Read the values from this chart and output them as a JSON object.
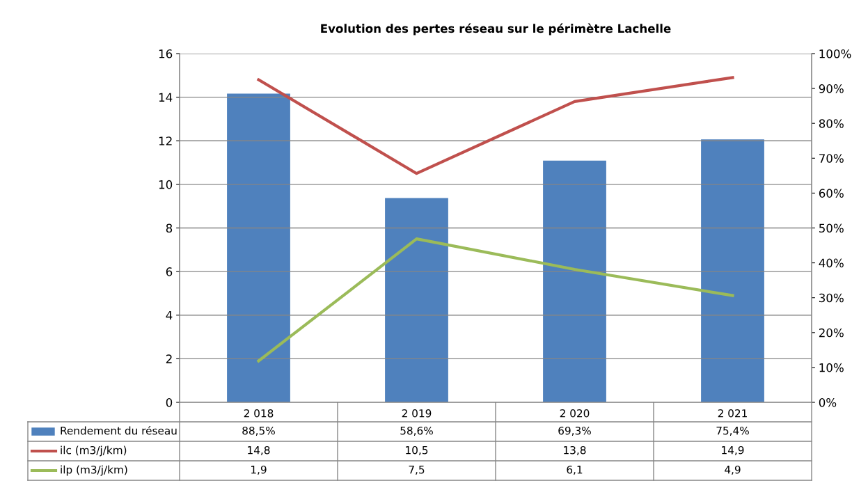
{
  "chart_data": {
    "type": "bar",
    "title": "Evolution des pertes réseau sur le périmètre Lachelle",
    "categories": [
      "2 018",
      "2 019",
      "2 020",
      "2 021"
    ],
    "series": [
      {
        "name": "Rendement du réseau",
        "axis": "y2",
        "color": "#4f81bd",
        "values": [
          88.5,
          58.6,
          69.3,
          75.4
        ],
        "value_labels": [
          "88,5%",
          "58,6%",
          "69,3%",
          "75,4%"
        ]
      },
      {
        "name": "ilc (m3/j/km)",
        "type": "line",
        "color": "#c0504d",
        "values": [
          14.8,
          10.5,
          13.8,
          14.9
        ],
        "value_labels": [
          "14,8",
          "10,5",
          "13,8",
          "14,9"
        ]
      },
      {
        "name": "ilp (m3/j/km)",
        "type": "line",
        "color": "#9bbb59",
        "values": [
          1.9,
          7.5,
          6.1,
          4.9
        ],
        "value_labels": [
          "1,9",
          "7,5",
          "6,1",
          "4,9"
        ]
      }
    ],
    "ylim": [
      0,
      16
    ],
    "yticks": [
      0,
      2,
      4,
      6,
      8,
      10,
      12,
      14,
      16
    ],
    "y2lim": [
      0,
      100
    ],
    "y2ticks": [
      {
        "value": 0,
        "label": "0%"
      },
      {
        "value": 10,
        "label": "10%"
      },
      {
        "value": 20,
        "label": "20%"
      },
      {
        "value": 30,
        "label": "30%"
      },
      {
        "value": 40,
        "label": "40%"
      },
      {
        "value": 50,
        "label": "50%"
      },
      {
        "value": 60,
        "label": "60%"
      },
      {
        "value": 70,
        "label": "70%"
      },
      {
        "value": 80,
        "label": "80%"
      },
      {
        "value": 90,
        "label": "90%"
      },
      {
        "value": 100,
        "label": "100%"
      }
    ],
    "grid": "y",
    "legend": "bottom",
    "marker": "none",
    "line_style": "solid"
  }
}
